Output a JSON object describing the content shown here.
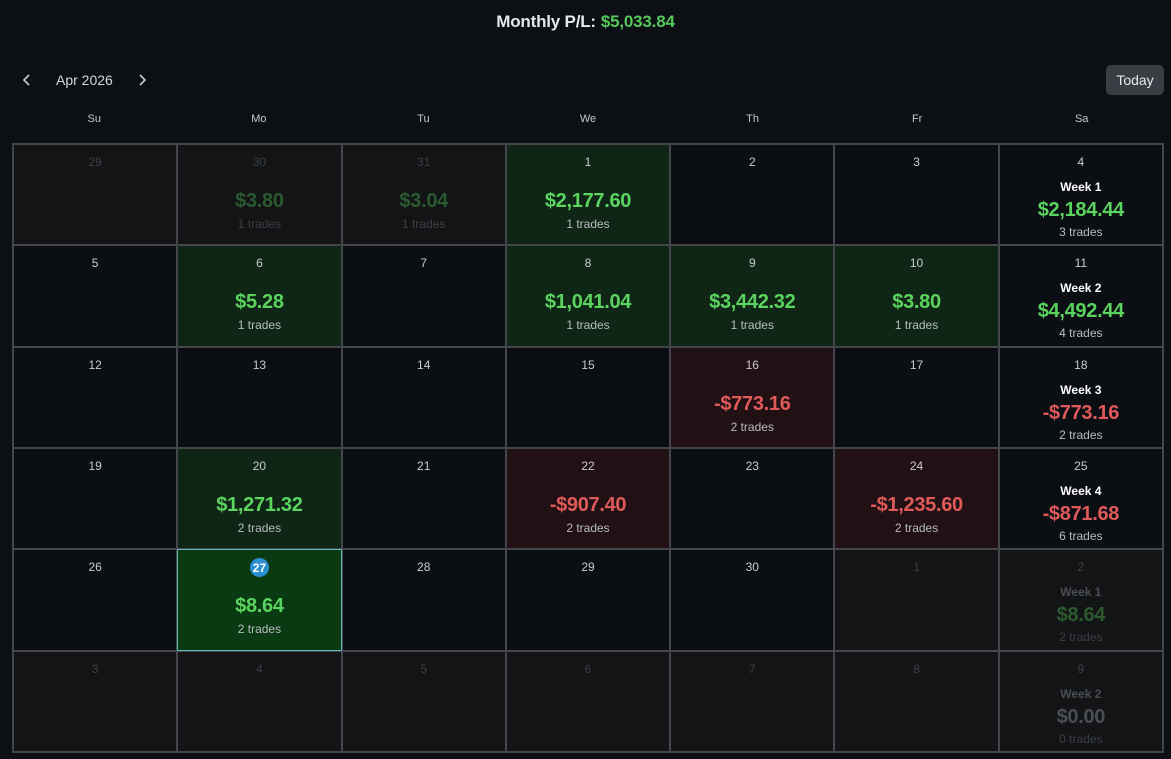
{
  "header": {
    "label": "Monthly P/L:",
    "value": "$5,033.84"
  },
  "nav": {
    "prev_icon": "chevron-left-icon",
    "next_icon": "chevron-right-icon",
    "month": "Apr 2026",
    "today": "Today"
  },
  "weekdays": [
    "Su",
    "Mo",
    "Tu",
    "We",
    "Th",
    "Fr",
    "Sa"
  ],
  "colors": {
    "positive": "#5bd35f",
    "negative": "#e05a5a",
    "today_badge": "#2a8fd0"
  },
  "weeks": [
    {
      "days": [
        {
          "day": "29",
          "out": true
        },
        {
          "day": "30",
          "out": true,
          "amount": "$3.80",
          "trades": "1 trades",
          "sign": "pos"
        },
        {
          "day": "31",
          "out": true,
          "amount": "$3.04",
          "trades": "1 trades",
          "sign": "pos"
        },
        {
          "day": "1",
          "amount": "$2,177.60",
          "trades": "1 trades",
          "sign": "pos"
        },
        {
          "day": "2"
        },
        {
          "day": "3"
        },
        {
          "day": "4",
          "week": "Week 1",
          "amount": "$2,184.44",
          "trades": "3 trades",
          "sign": "pos"
        }
      ]
    },
    {
      "days": [
        {
          "day": "5"
        },
        {
          "day": "6",
          "amount": "$5.28",
          "trades": "1 trades",
          "sign": "pos"
        },
        {
          "day": "7"
        },
        {
          "day": "8",
          "amount": "$1,041.04",
          "trades": "1 trades",
          "sign": "pos"
        },
        {
          "day": "9",
          "amount": "$3,442.32",
          "trades": "1 trades",
          "sign": "pos"
        },
        {
          "day": "10",
          "amount": "$3.80",
          "trades": "1 trades",
          "sign": "pos"
        },
        {
          "day": "11",
          "week": "Week 2",
          "amount": "$4,492.44",
          "trades": "4 trades",
          "sign": "pos"
        }
      ]
    },
    {
      "days": [
        {
          "day": "12"
        },
        {
          "day": "13"
        },
        {
          "day": "14"
        },
        {
          "day": "15"
        },
        {
          "day": "16",
          "amount": "-$773.16",
          "trades": "2 trades",
          "sign": "neg"
        },
        {
          "day": "17"
        },
        {
          "day": "18",
          "week": "Week 3",
          "amount": "-$773.16",
          "trades": "2 trades",
          "sign": "neg"
        }
      ]
    },
    {
      "days": [
        {
          "day": "19"
        },
        {
          "day": "20",
          "amount": "$1,271.32",
          "trades": "2 trades",
          "sign": "pos"
        },
        {
          "day": "21"
        },
        {
          "day": "22",
          "amount": "-$907.40",
          "trades": "2 trades",
          "sign": "neg"
        },
        {
          "day": "23"
        },
        {
          "day": "24",
          "amount": "-$1,235.60",
          "trades": "2 trades",
          "sign": "neg"
        },
        {
          "day": "25",
          "week": "Week 4",
          "amount": "-$871.68",
          "trades": "6 trades",
          "sign": "neg"
        }
      ]
    },
    {
      "days": [
        {
          "day": "26"
        },
        {
          "day": "27",
          "today": true,
          "amount": "$8.64",
          "trades": "2 trades",
          "sign": "pos"
        },
        {
          "day": "28"
        },
        {
          "day": "29"
        },
        {
          "day": "30"
        },
        {
          "day": "1",
          "out": true
        },
        {
          "day": "2",
          "out": true,
          "week": "Week 1",
          "amount": "$8.64",
          "trades": "2 trades",
          "sign": "pos"
        }
      ]
    },
    {
      "days": [
        {
          "day": "3",
          "out": true
        },
        {
          "day": "4",
          "out": true
        },
        {
          "day": "5",
          "out": true
        },
        {
          "day": "6",
          "out": true
        },
        {
          "day": "7",
          "out": true
        },
        {
          "day": "8",
          "out": true
        },
        {
          "day": "9",
          "out": true,
          "week": "Week 2",
          "amount": "$0.00",
          "trades": "0 trades",
          "sign": "zero"
        }
      ]
    }
  ]
}
